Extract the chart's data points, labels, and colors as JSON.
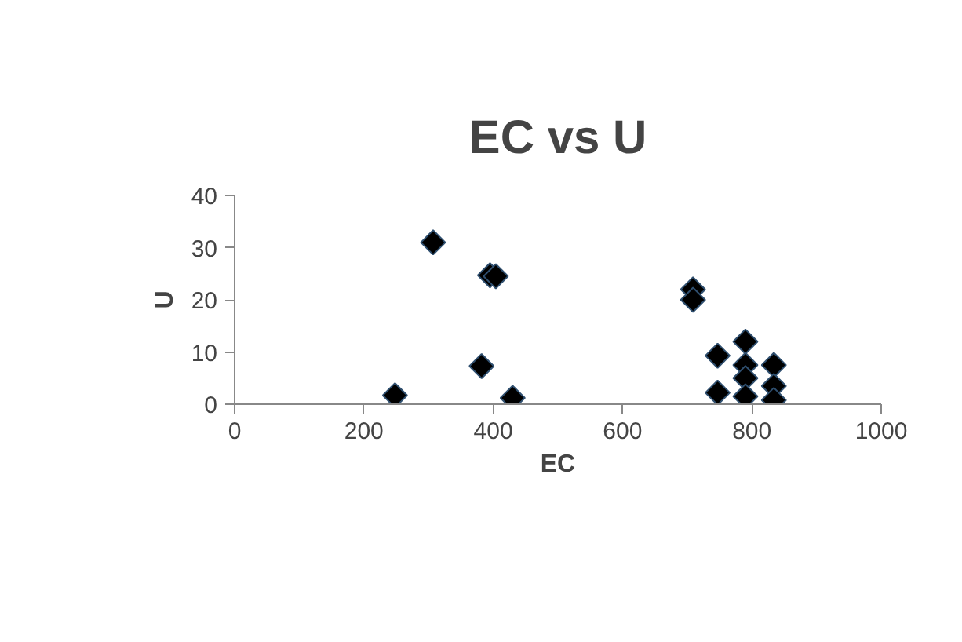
{
  "chart_data": {
    "type": "scatter",
    "title": "EC vs U",
    "xlabel": "EC",
    "ylabel": "U",
    "x": [
      248,
      307,
      395,
      404,
      382,
      430,
      709,
      709,
      747,
      747,
      790,
      790,
      790,
      790,
      834,
      834,
      834
    ],
    "values": [
      1.7,
      31,
      24.7,
      24.5,
      7.3,
      1.2,
      22,
      20,
      9.3,
      2.2,
      12,
      7.5,
      5,
      1.5,
      7.5,
      3.5,
      0.8
    ],
    "color": "#000000",
    "marker": "diamond",
    "xlim": [
      0,
      1000
    ],
    "ylim": [
      0,
      40
    ],
    "xticks": [
      0,
      200,
      400,
      600,
      800,
      1000
    ],
    "yticks": [
      0,
      10,
      20,
      30,
      40
    ],
    "grid": false
  }
}
